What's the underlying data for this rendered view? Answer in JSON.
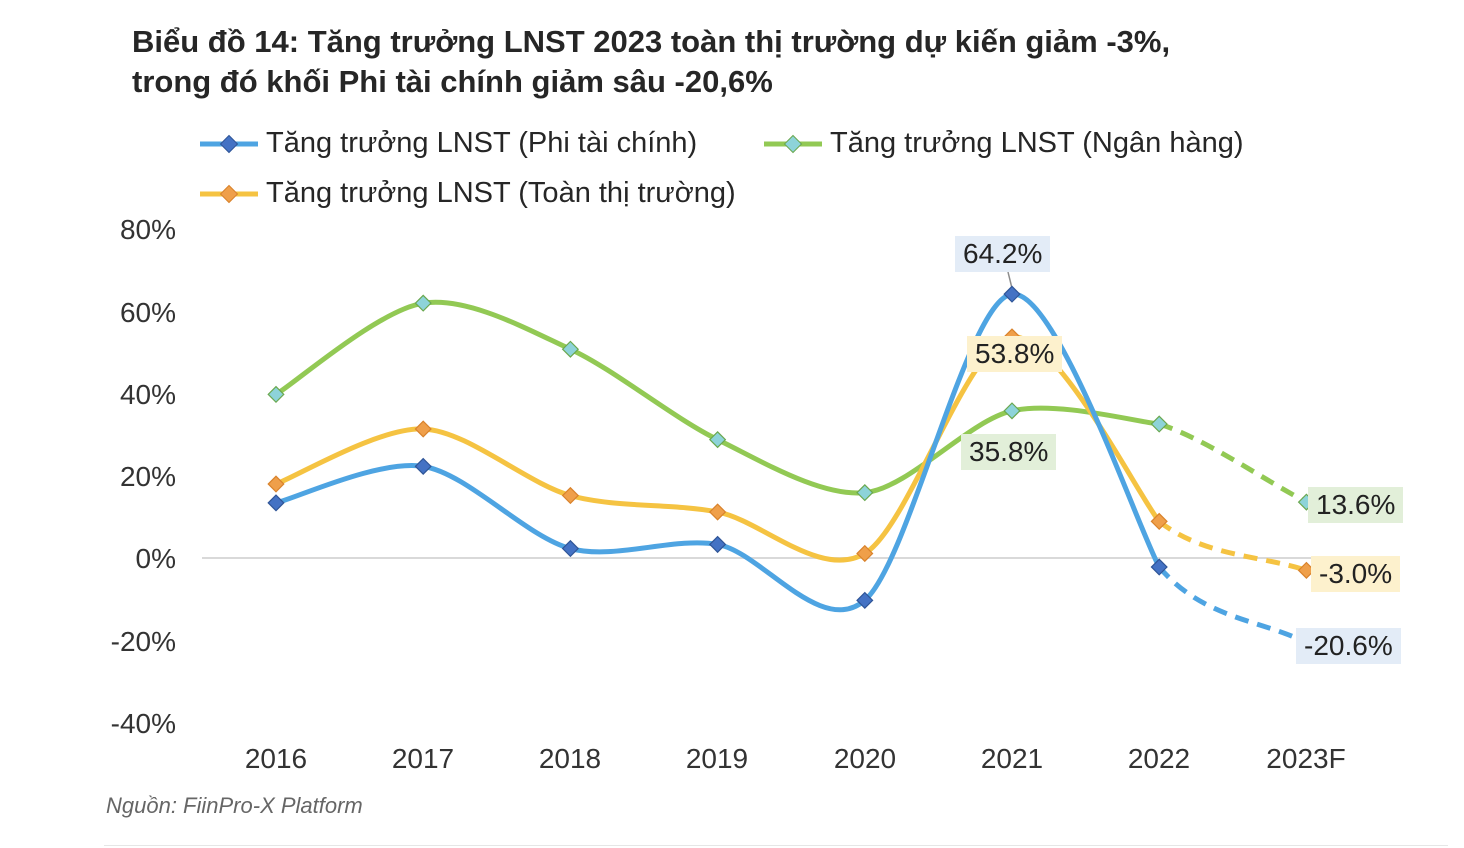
{
  "title_line1": "Biểu đồ 14: Tăng trưởng LNST 2023 toàn thị trường dự kiến giảm -3%,",
  "title_line2": "trong đó khối Phi tài chính giảm sâu -20,6%",
  "source": "Nguồn: FiinPro-X Platform",
  "chart_data": {
    "type": "line",
    "categories": [
      "2016",
      "2017",
      "2018",
      "2019",
      "2020",
      "2021",
      "2022",
      "2023F"
    ],
    "yticks": [
      "80%",
      "60%",
      "40%",
      "20%",
      "0%",
      "-20%",
      "-40%"
    ],
    "ylim": [
      -40,
      80
    ],
    "forecast_from_index": 6,
    "series": [
      {
        "name": "Tăng trưởng LNST (Phi tài chính)",
        "color": "#4ea4e2",
        "marker": "#4472c4",
        "values": [
          13.4,
          22.3,
          2.3,
          3.3,
          -10.3,
          64.2,
          -2.2,
          -20.6
        ]
      },
      {
        "name": "Tăng trưởng LNST (Ngân hàng)",
        "color": "#92c954",
        "marker": "#8dd3d9",
        "values": [
          39.8,
          62.0,
          50.8,
          28.8,
          15.9,
          35.8,
          32.6,
          13.6
        ]
      },
      {
        "name": "Tăng trưởng LNST (Toàn thị trường)",
        "color": "#f5c342",
        "marker": "#ef9f4a",
        "values": [
          18.0,
          31.4,
          15.2,
          11.2,
          1.1,
          53.8,
          8.9,
          -3.0
        ]
      }
    ],
    "data_labels": [
      {
        "series": 0,
        "index": 5,
        "text": "64.2%",
        "bg": "#e3ecf7"
      },
      {
        "series": 2,
        "index": 5,
        "text": "53.8%",
        "bg": "#fdf1cd"
      },
      {
        "series": 1,
        "index": 5,
        "text": "35.8%",
        "bg": "#e2efd9"
      },
      {
        "series": 1,
        "index": 7,
        "text": "13.6%",
        "bg": "#e2efd9"
      },
      {
        "series": 2,
        "index": 7,
        "text": "-3.0%",
        "bg": "#fdf1cd"
      },
      {
        "series": 0,
        "index": 7,
        "text": "-20.6%",
        "bg": "#e3ecf7"
      }
    ]
  }
}
